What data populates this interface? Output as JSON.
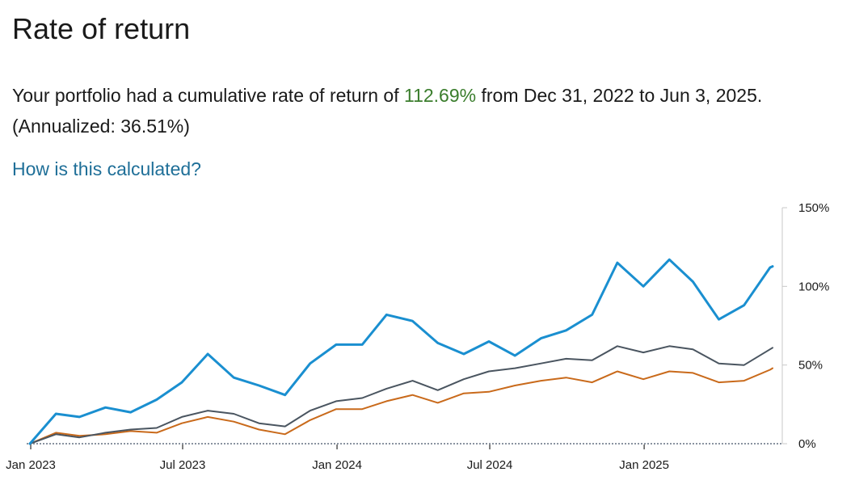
{
  "header": {
    "title": "Rate of return"
  },
  "summary": {
    "prefix": "Your portfolio had a cumulative rate of return of ",
    "return_value": "112.69%",
    "mid": " from Dec 31, 2022 to Jun 3, 2025. (Annualized: ",
    "annualized_value": "36.51%",
    "suffix": ")"
  },
  "help_link": {
    "label": "How is this calculated?"
  },
  "colors": {
    "return_highlight": "#3a7d2c",
    "link": "#1f6f98"
  },
  "chart_data": {
    "type": "line",
    "title": "",
    "xlabel": "",
    "ylabel": "",
    "y_axis_position": "right",
    "x_range": [
      "2022-12-31",
      "2025-06-03"
    ],
    "ylim": [
      0,
      150
    ],
    "yticks": [
      0,
      50,
      100,
      150
    ],
    "ytick_labels": [
      "0%",
      "50%",
      "100%",
      "150%"
    ],
    "xticks": [
      "2023-01-01",
      "2023-07-01",
      "2024-01-01",
      "2024-07-01",
      "2025-01-01"
    ],
    "xtick_labels": [
      "Jan 2023",
      "Jul 2023",
      "Jan 2024",
      "Jul 2024",
      "Jan 2025"
    ],
    "grid": false,
    "legend": "none",
    "x": [
      "2022-12-31",
      "2023-01-31",
      "2023-02-28",
      "2023-03-31",
      "2023-04-30",
      "2023-05-31",
      "2023-06-30",
      "2023-07-31",
      "2023-08-31",
      "2023-09-30",
      "2023-10-31",
      "2023-11-30",
      "2023-12-31",
      "2024-01-31",
      "2024-02-29",
      "2024-03-31",
      "2024-04-30",
      "2024-05-31",
      "2024-06-30",
      "2024-07-31",
      "2024-08-31",
      "2024-09-30",
      "2024-10-31",
      "2024-11-30",
      "2024-12-31",
      "2025-01-31",
      "2025-02-28",
      "2025-03-31",
      "2025-04-30",
      "2025-05-31",
      "2025-06-03"
    ],
    "series": [
      {
        "color": "#1a8fd0",
        "values": [
          0,
          19,
          17,
          23,
          20,
          28,
          39,
          57,
          42,
          37,
          31,
          51,
          63,
          63,
          82,
          78,
          64,
          57,
          65,
          56,
          67,
          72,
          82,
          115,
          100,
          117,
          103,
          79,
          88,
          112,
          112.69
        ]
      },
      {
        "color": "#4a5560",
        "values": [
          0,
          6,
          4,
          7,
          9,
          10,
          17,
          21,
          19,
          13,
          11,
          21,
          27,
          29,
          35,
          40,
          34,
          41,
          46,
          48,
          51,
          54,
          53,
          62,
          58,
          62,
          60,
          51,
          50,
          60,
          61
        ]
      },
      {
        "color": "#c96a1b",
        "values": [
          0,
          7,
          5,
          6,
          8,
          7,
          13,
          17,
          14,
          9,
          6,
          15,
          22,
          22,
          27,
          31,
          26,
          32,
          33,
          37,
          40,
          42,
          39,
          46,
          41,
          46,
          45,
          39,
          40,
          47,
          48
        ]
      }
    ]
  }
}
